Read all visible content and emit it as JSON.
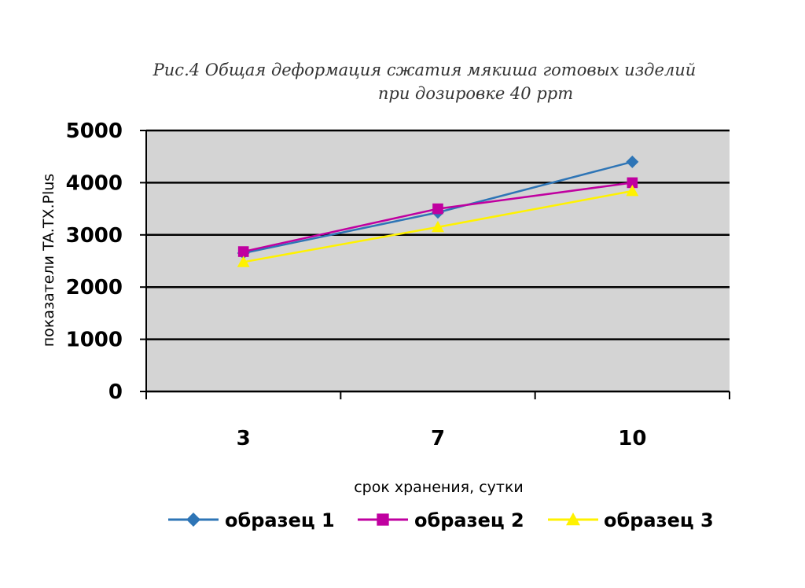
{
  "caption": {
    "line1": "Рис.4 Общая деформация сжатия мякиша готовых изделий",
    "line2": "при дозировке 40 ppm"
  },
  "chart_data": {
    "type": "line",
    "categories": [
      "3",
      "7",
      "10"
    ],
    "series": [
      {
        "name": "образец 1",
        "values": [
          2650,
          3430,
          4400
        ],
        "color": "#2E75B6",
        "marker": "diamond"
      },
      {
        "name": "образец 2",
        "values": [
          2680,
          3500,
          4000
        ],
        "color": "#C000A0",
        "marker": "square"
      },
      {
        "name": "образец 3",
        "values": [
          2480,
          3150,
          3840
        ],
        "color": "#FFF200",
        "marker": "triangle"
      }
    ],
    "xlabel": "срок хранения, сутки",
    "ylabel": "показатели TA.TX.Plus",
    "ylim": [
      0,
      5000
    ],
    "yticks": [
      "0",
      "1000",
      "2000",
      "3000",
      "4000",
      "5000"
    ],
    "grid": true,
    "plot_background": "#D4D4D4",
    "legend_position": "bottom"
  }
}
